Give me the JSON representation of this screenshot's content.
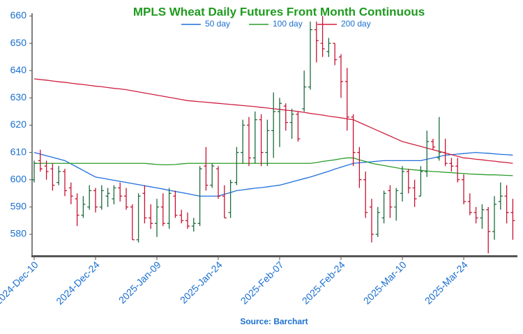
{
  "chart_data": {
    "type": "ohlc",
    "title": "MPLS Wheat Daily Futures Front Month Continuous",
    "source": "Source: Barchart",
    "categories": [
      "2024-Dec-10",
      null,
      null,
      null,
      null,
      null,
      null,
      null,
      null,
      null,
      "2024-Dec-24",
      null,
      null,
      null,
      null,
      null,
      null,
      null,
      null,
      null,
      "2025-Jan-09",
      null,
      null,
      null,
      null,
      null,
      null,
      null,
      null,
      null,
      "2025-Jan-24",
      null,
      null,
      null,
      null,
      null,
      null,
      null,
      null,
      null,
      "2025-Feb-07",
      null,
      null,
      null,
      null,
      null,
      null,
      null,
      null,
      null,
      "2025-Feb-24",
      null,
      null,
      null,
      null,
      null,
      null,
      null,
      null,
      null,
      "2025-Mar-10",
      null,
      null,
      null,
      null,
      null,
      null,
      null,
      null,
      null,
      "2025-Mar-24",
      null,
      null,
      null,
      null,
      null,
      null,
      null,
      null
    ],
    "open": [
      600,
      607,
      605,
      604,
      599,
      603,
      597,
      593,
      587,
      590,
      596,
      590,
      594,
      593,
      597,
      594,
      590,
      578,
      595,
      586,
      584,
      590,
      584,
      594,
      587,
      585,
      583,
      584,
      605,
      598,
      604,
      594,
      588,
      599,
      610,
      620,
      608,
      622,
      610,
      618,
      625,
      627,
      621,
      624,
      626,
      634,
      655,
      650,
      647,
      650,
      645,
      636,
      623,
      610,
      600,
      590,
      580,
      586,
      596,
      590,
      595,
      603,
      597,
      594,
      603,
      614,
      608,
      610,
      606,
      605,
      600,
      592,
      588,
      586,
      589,
      581,
      592,
      594,
      588
    ],
    "high": [
      607,
      611,
      607,
      606,
      605,
      604,
      599,
      595,
      594,
      598,
      597,
      598,
      597,
      598,
      599,
      597,
      591,
      595,
      598,
      591,
      593,
      595,
      597,
      596,
      589,
      588,
      586,
      605,
      612,
      606,
      605,
      598,
      600,
      612,
      622,
      623,
      625,
      624,
      622,
      632,
      630,
      628,
      626,
      625,
      640,
      658,
      658,
      660,
      652,
      650,
      646,
      641,
      624,
      612,
      603,
      593,
      590,
      596,
      598,
      597,
      605,
      604,
      600,
      605,
      618,
      615,
      623,
      615,
      608,
      608,
      602,
      595,
      590,
      591,
      590,
      594,
      599,
      598,
      593
    ],
    "low": [
      599,
      603,
      600,
      596,
      598,
      594,
      591,
      583,
      586,
      589,
      588,
      589,
      590,
      591,
      592,
      589,
      578,
      577,
      584,
      582,
      579,
      583,
      582,
      586,
      584,
      582,
      581,
      583,
      596,
      597,
      593,
      586,
      586,
      598,
      606,
      605,
      606,
      605,
      605,
      608,
      612,
      618,
      615,
      614,
      625,
      633,
      643,
      645,
      645,
      642,
      630,
      618,
      605,
      597,
      586,
      577,
      579,
      584,
      586,
      585,
      592,
      595,
      590,
      594,
      601,
      611,
      607,
      605,
      603,
      599,
      591,
      587,
      584,
      582,
      573,
      578,
      589,
      584,
      578
    ],
    "close": [
      606,
      604,
      603,
      598,
      603,
      596,
      594,
      587,
      591,
      596,
      590,
      596,
      595,
      597,
      594,
      590,
      578,
      594,
      586,
      584,
      590,
      584,
      595,
      587,
      585,
      583,
      584,
      604,
      598,
      605,
      594,
      586,
      599,
      610,
      620,
      608,
      622,
      610,
      618,
      625,
      628,
      621,
      624,
      615,
      634,
      655,
      651,
      648,
      650,
      644,
      636,
      623,
      610,
      600,
      588,
      580,
      588,
      595,
      590,
      596,
      603,
      597,
      593,
      603,
      614,
      612,
      610,
      606,
      605,
      600,
      592,
      588,
      586,
      589,
      581,
      591,
      594,
      588,
      585
    ],
    "up_color": "#1b6b3c",
    "down_color": "#c8102e",
    "series": [
      {
        "name": "50 day",
        "color": "#1f6fdc",
        "values": [
          610,
          609.4,
          608.8,
          608.2,
          607.6,
          607,
          605.8,
          604.6,
          603.4,
          602.2,
          601,
          600.6,
          600.2,
          599.8,
          599.4,
          599,
          598.6,
          598.2,
          597.8,
          597.4,
          597,
          596.6,
          596.1,
          595.7,
          595.3,
          594.9,
          594.4,
          594,
          594,
          594,
          594,
          594.7,
          595.3,
          596,
          596.3,
          596.6,
          596.9,
          597.1,
          597.4,
          597.7,
          598,
          598.6,
          599.2,
          599.8,
          600.4,
          601,
          601.7,
          602.4,
          603.1,
          603.9,
          604.6,
          605.3,
          606,
          606.2,
          606.4,
          606.6,
          606.8,
          607,
          607,
          607,
          607,
          607,
          607,
          607,
          607.5,
          608,
          608.5,
          609,
          609.2,
          609.4,
          609.6,
          609.8,
          610,
          609.8,
          609.7,
          609.5,
          609.3,
          609.2,
          609
        ]
      },
      {
        "name": "100 day",
        "color": "#2a9d2a",
        "values": [
          606,
          606,
          606,
          606,
          606,
          606,
          606,
          606,
          606,
          606,
          606,
          606,
          606,
          606,
          606,
          606,
          606,
          606,
          606,
          605.8,
          605.6,
          605.5,
          605.5,
          605.6,
          605.8,
          606,
          606,
          606,
          606,
          606,
          606,
          606,
          606,
          606,
          606,
          606,
          606,
          606,
          606,
          606,
          606,
          606,
          606,
          606,
          606,
          606,
          606.3,
          606.7,
          607,
          607.3,
          607.7,
          608,
          608,
          607.3,
          606.7,
          606,
          605.6,
          605.2,
          604.8,
          604.4,
          604,
          603.8,
          603.6,
          603.4,
          603.2,
          603,
          602.9,
          602.7,
          602.6,
          602.4,
          602.3,
          602.1,
          602,
          601.9,
          601.8,
          601.8,
          601.7,
          601.6,
          601.5
        ]
      },
      {
        "name": "200 day",
        "color": "#d0203f",
        "values": [
          637,
          636.7,
          636.5,
          636.2,
          635.9,
          635.7,
          635.4,
          635.1,
          634.9,
          634.6,
          634.3,
          634.1,
          633.8,
          633.5,
          633.3,
          633,
          632.6,
          632.2,
          631.8,
          631.4,
          631,
          630.6,
          630.2,
          629.8,
          629.4,
          629,
          628.8,
          628.6,
          628.4,
          628.2,
          628,
          627.8,
          627.6,
          627.4,
          627.2,
          627,
          626.8,
          626.5,
          626.3,
          626,
          625.8,
          625.5,
          625.3,
          625,
          624.7,
          624.3,
          624,
          623.7,
          623.3,
          623,
          622.7,
          622.3,
          622,
          621,
          620,
          619,
          618,
          617,
          616,
          615,
          614,
          613.4,
          612.8,
          612.2,
          611.6,
          611,
          610.4,
          609.8,
          609.2,
          608.6,
          608,
          607.8,
          607.5,
          607.3,
          607,
          606.8,
          606.5,
          606.3,
          606
        ]
      }
    ],
    "ylim": [
      572,
      661
    ],
    "yticks": [
      580,
      590,
      600,
      610,
      620,
      630,
      640,
      650,
      660
    ],
    "grid": false
  }
}
